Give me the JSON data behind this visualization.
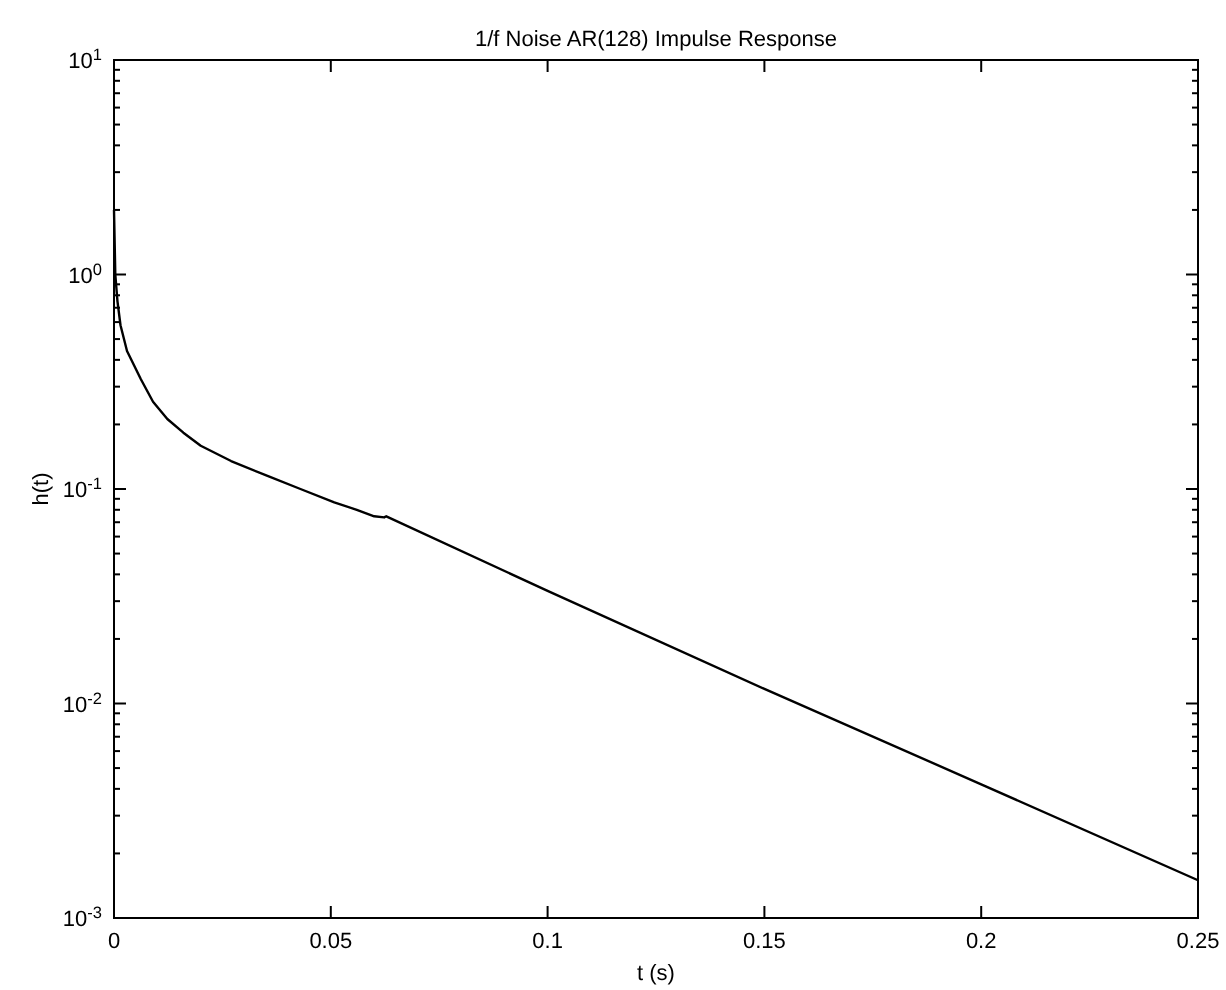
{
  "chart_data": {
    "type": "line",
    "title": "1/f Noise AR(128) Impulse Response",
    "xlabel": "t (s)",
    "ylabel": "h(t)",
    "log": "y",
    "grid": false,
    "marker": "none",
    "line_style": "solid",
    "xlim": [
      0,
      0.25
    ],
    "xticks": [
      0,
      0.05,
      0.1,
      0.15,
      0.2,
      0.25
    ],
    "ylim": [
      0.001,
      10
    ],
    "yticks": [
      {
        "value": 0.001,
        "label": "10$^{-3}$"
      },
      {
        "value": 0.002,
        "label": null
      },
      {
        "value": 0.003,
        "label": null
      },
      {
        "value": 0.004,
        "label": null
      },
      {
        "value": 0.005,
        "label": null
      },
      {
        "value": 0.006,
        "label": null
      },
      {
        "value": 0.007,
        "label": null
      },
      {
        "value": 0.008,
        "label": null
      },
      {
        "value": 0.009,
        "label": null
      },
      {
        "value": 0.01,
        "label": "10$^{-2}$"
      },
      {
        "value": 0.02,
        "label": null
      },
      {
        "value": 0.03,
        "label": null
      },
      {
        "value": 0.04,
        "label": null
      },
      {
        "value": 0.05,
        "label": null
      },
      {
        "value": 0.06,
        "label": null
      },
      {
        "value": 0.07,
        "label": null
      },
      {
        "value": 0.08,
        "label": null
      },
      {
        "value": 0.09,
        "label": null
      },
      {
        "value": 0.1,
        "label": "10$^{-1}$"
      },
      {
        "value": 0.2,
        "label": null
      },
      {
        "value": 0.3,
        "label": null
      },
      {
        "value": 0.4,
        "label": null
      },
      {
        "value": 0.5,
        "label": null
      },
      {
        "value": 0.6,
        "label": null
      },
      {
        "value": 0.7,
        "label": null
      },
      {
        "value": 0.8,
        "label": null
      },
      {
        "value": 0.9,
        "label": null
      },
      {
        "value": 1,
        "label": "10$^{0}$"
      },
      {
        "value": 2,
        "label": null
      },
      {
        "value": 3,
        "label": null
      },
      {
        "value": 4,
        "label": null
      },
      {
        "value": 5,
        "label": null
      },
      {
        "value": 6,
        "label": null
      },
      {
        "value": 7,
        "label": null
      },
      {
        "value": 8,
        "label": null
      },
      {
        "value": 9,
        "label": null
      },
      {
        "value": 10,
        "label": "10$^{1}$"
      }
    ],
    "series": [
      {
        "color": "#000000",
        "x": [
          0,
          0.0003,
          0.0008,
          0.0015,
          0.003,
          0.0062,
          0.009,
          0.0123,
          0.016,
          0.02,
          0.027,
          0.0354,
          0.043,
          0.0508,
          0.056,
          0.06,
          0.0623,
          0.0628,
          0.1,
          0.15,
          0.2,
          0.25
        ],
        "values": [
          2.0,
          1.0,
          0.75,
          0.58,
          0.44,
          0.325,
          0.255,
          0.212,
          0.183,
          0.159,
          0.135,
          0.115,
          0.1,
          0.0867,
          0.08,
          0.0746,
          0.0737,
          0.0746,
          0.0335,
          0.0117,
          0.0042,
          0.0015
        ]
      }
    ]
  }
}
